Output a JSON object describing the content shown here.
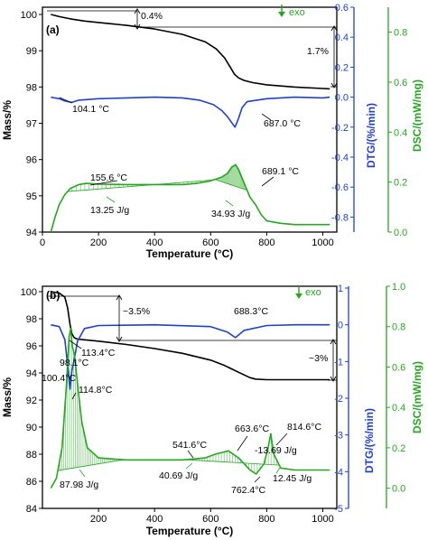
{
  "colors": {
    "mass": "#000000",
    "dtg": "#1f3fd6",
    "dsc": "#23a81e",
    "frame": "#000000"
  },
  "chart_data": [
    {
      "type": "line",
      "panel_label": "(a)",
      "xlabel": "Temperature (°C)",
      "xlim": [
        0,
        1050
      ],
      "x_ticks": [
        0,
        200,
        400,
        600,
        800,
        1000
      ],
      "grid": false,
      "axes": {
        "mass": {
          "label": "Mass/%",
          "lim": [
            94,
            100.2
          ],
          "ticks": [
            94,
            95,
            96,
            97,
            98,
            99,
            100
          ]
        },
        "dtg": {
          "label": "DTG/(%/min)",
          "lim": [
            -0.9,
            0.6
          ],
          "ticks": [
            0.6,
            0.4,
            0.2,
            0.0,
            -0.2,
            -0.4,
            -0.6,
            -0.8
          ],
          "tick_labels": [
            "0.6",
            "0.4",
            "0.2",
            "0.0",
            "-0.2",
            "-0.4",
            "-0.6",
            "-0.8"
          ]
        },
        "dsc": {
          "label": "DSC/(mW/mg)",
          "lim": [
            0,
            0.9
          ],
          "ticks": [
            0.0,
            0.2,
            0.4,
            0.6,
            0.8
          ],
          "tick_labels": [
            "0.0",
            "0.2",
            "0.4",
            "0.6",
            "0.8"
          ]
        }
      },
      "exo_label": "exo",
      "series": [
        {
          "axis": "mass",
          "x": [
            30,
            60,
            100,
            150,
            200,
            300,
            400,
            500,
            580,
            620,
            650,
            670,
            685,
            700,
            720,
            750,
            800,
            900,
            1000,
            1025
          ],
          "y": [
            100.0,
            99.94,
            99.88,
            99.82,
            99.78,
            99.7,
            99.6,
            99.45,
            99.25,
            99.05,
            98.8,
            98.55,
            98.35,
            98.25,
            98.18,
            98.12,
            98.06,
            98.0,
            97.96,
            97.95
          ]
        },
        {
          "axis": "dtg",
          "x": [
            30,
            60,
            80,
            104.1,
            130,
            200,
            300,
            400,
            500,
            560,
            610,
            640,
            660,
            675,
            687,
            700,
            712,
            730,
            800,
            900,
            1000,
            1025
          ],
          "y": [
            0.0,
            -0.01,
            -0.025,
            -0.035,
            -0.02,
            -0.01,
            -0.005,
            0.0,
            -0.005,
            -0.02,
            -0.05,
            -0.09,
            -0.13,
            -0.17,
            -0.2,
            -0.14,
            -0.07,
            -0.03,
            -0.01,
            0.0,
            -0.005,
            0.0
          ]
        },
        {
          "axis": "dsc",
          "x": [
            30,
            45,
            60,
            80,
            100,
            130,
            155.6,
            200,
            300,
            400,
            500,
            550,
            600,
            640,
            660,
            675,
            689.1,
            700,
            720,
            740,
            760,
            780,
            800,
            850,
            900,
            1000,
            1025
          ],
          "y": [
            0.0,
            0.06,
            0.11,
            0.15,
            0.175,
            0.19,
            0.195,
            0.192,
            0.19,
            0.19,
            0.19,
            0.195,
            0.205,
            0.22,
            0.235,
            0.26,
            0.27,
            0.25,
            0.195,
            0.14,
            0.11,
            0.07,
            0.045,
            0.035,
            0.03,
            0.03,
            0.03
          ]
        }
      ],
      "annotations": [
        {
          "text": "0.4%"
        },
        {
          "text": "1.7%"
        },
        {
          "text": "104.1 °C"
        },
        {
          "text": "687.0 °C"
        },
        {
          "text": "155.6 °C"
        },
        {
          "text": "689.1 °C"
        },
        {
          "text": "13.25 J/g"
        },
        {
          "text": "34.93 J/g"
        }
      ]
    },
    {
      "type": "line",
      "panel_label": "(b)",
      "xlabel": "Temperature (°C)",
      "xlim": [
        0,
        1050
      ],
      "x_ticks": [
        200,
        400,
        600,
        800,
        1000
      ],
      "grid": false,
      "axes": {
        "mass": {
          "label": "Mass/%",
          "lim": [
            84,
            100.4
          ],
          "ticks": [
            84,
            86,
            88,
            90,
            92,
            94,
            96,
            98,
            100
          ]
        },
        "dtg": {
          "label": "DTG/(%/min)",
          "lim": [
            -5,
            1.05
          ],
          "ticks": [
            1,
            0,
            -1,
            -2,
            -3,
            -4,
            -5
          ],
          "tick_labels": [
            "1",
            "0",
            "-1",
            "-2",
            "-3",
            "-4",
            "-5"
          ]
        },
        "dsc": {
          "label": "DSC/(mW/mg)",
          "lim": [
            -0.1,
            1.0
          ],
          "ticks": [
            0.0,
            0.2,
            0.4,
            0.6,
            0.8,
            1.0
          ],
          "tick_labels": [
            "0.0",
            "0.2",
            "0.4",
            "0.6",
            "0.8",
            "1.0"
          ]
        }
      },
      "exo_label": "exo",
      "series": [
        {
          "axis": "mass",
          "x": [
            30,
            60,
            80,
            90,
            98.1,
            105,
            113.4,
            125,
            150,
            200,
            300,
            400,
            500,
            600,
            650,
            700,
            740,
            760,
            800,
            900,
            1000,
            1025
          ],
          "y": [
            100.0,
            99.9,
            99.6,
            98.8,
            97.6,
            96.9,
            96.6,
            96.5,
            96.45,
            96.35,
            96.1,
            95.8,
            95.45,
            94.95,
            94.55,
            94.05,
            93.65,
            93.55,
            93.5,
            93.5,
            93.5,
            93.5
          ]
        },
        {
          "axis": "dtg",
          "x": [
            30,
            60,
            80,
            90,
            98.1,
            105,
            113.4,
            125,
            150,
            200,
            400,
            600,
            660,
            688.3,
            720,
            800,
            900,
            1000,
            1025
          ],
          "y": [
            0.0,
            -0.05,
            -0.4,
            -1.1,
            -1.75,
            -1.25,
            -0.95,
            -0.45,
            -0.1,
            -0.02,
            0.0,
            -0.05,
            -0.2,
            -0.35,
            -0.15,
            -0.02,
            0.0,
            0.0,
            0.0
          ]
        },
        {
          "axis": "dsc",
          "x": [
            30,
            50,
            70,
            85,
            95,
            100.4,
            107,
            114.8,
            125,
            140,
            160,
            200,
            300,
            400,
            500,
            541.6,
            580,
            620,
            663.6,
            700,
            740,
            762.4,
            790,
            805,
            814.6,
            825,
            850,
            900,
            1000,
            1025
          ],
          "y": [
            0.0,
            0.05,
            0.2,
            0.5,
            0.75,
            0.79,
            0.7,
            0.66,
            0.52,
            0.33,
            0.2,
            0.15,
            0.14,
            0.14,
            0.14,
            0.145,
            0.15,
            0.17,
            0.185,
            0.15,
            0.09,
            0.07,
            0.12,
            0.2,
            0.27,
            0.17,
            0.1,
            0.09,
            0.09,
            0.09
          ]
        }
      ],
      "annotations": [
        {
          "text": "~3.5%"
        },
        {
          "text": "~3%"
        },
        {
          "text": "98.1°C"
        },
        {
          "text": "113.4°C"
        },
        {
          "text": "688.3°C"
        },
        {
          "text": "100.4°C"
        },
        {
          "text": "114.8°C"
        },
        {
          "text": "541.6°C"
        },
        {
          "text": "663.6°C"
        },
        {
          "text": "-13.69 J/g"
        },
        {
          "text": "814.6°C"
        },
        {
          "text": "762.4°C"
        },
        {
          "text": "12.45 J/g"
        },
        {
          "text": "87.98 J/g"
        },
        {
          "text": "40.69 J/g"
        }
      ]
    }
  ]
}
